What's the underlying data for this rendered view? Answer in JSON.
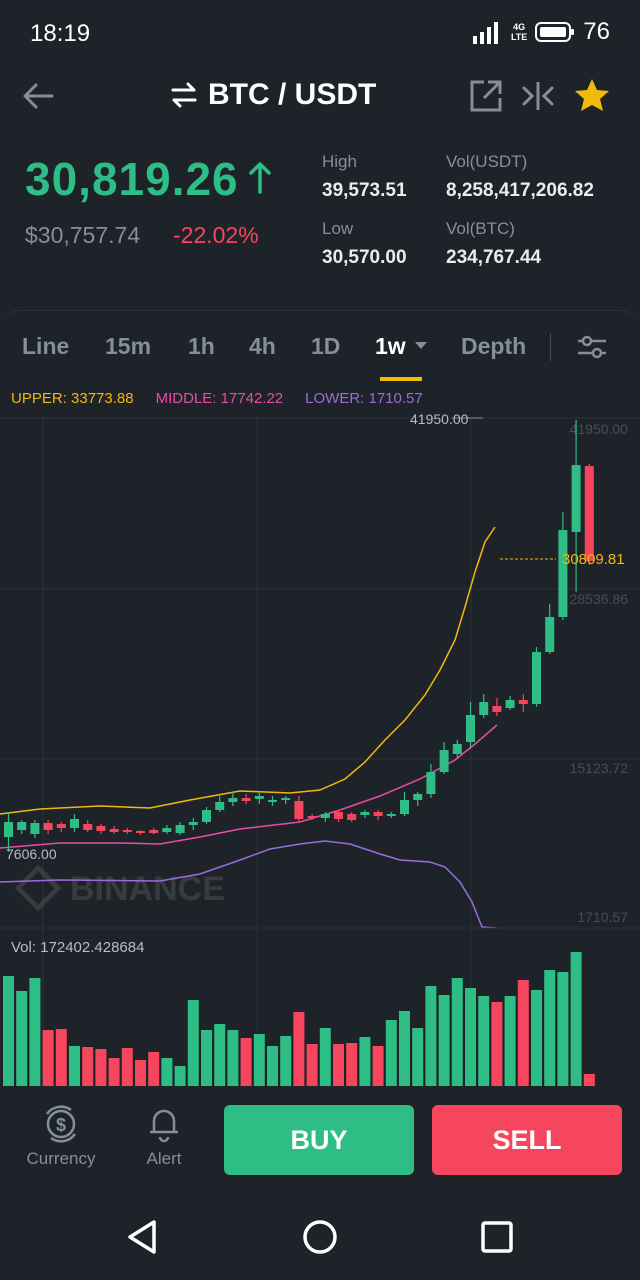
{
  "status": {
    "time": "18:19",
    "network": "4G",
    "network_sub": "LTE",
    "battery": "76"
  },
  "header": {
    "pair": "BTC / USDT"
  },
  "ticker": {
    "last_price": "30,819.26",
    "usd_price": "$30,757.74",
    "change_pct": "-22.02%",
    "high_label": "High",
    "high_value": "39,573.51",
    "low_label": "Low",
    "low_value": "30,570.00",
    "vol_usdt_label": "Vol(USDT)",
    "vol_usdt_value": "8,258,417,206.82",
    "vol_btc_label": "Vol(BTC)",
    "vol_btc_value": "234,767.44"
  },
  "tabs": {
    "items": [
      {
        "label": "Line"
      },
      {
        "label": "15m"
      },
      {
        "label": "1h"
      },
      {
        "label": "4h"
      },
      {
        "label": "1D"
      },
      {
        "label": "1w"
      },
      {
        "label": "Depth"
      }
    ],
    "active": "1w"
  },
  "indicator": {
    "upper": "UPPER: 33773.88",
    "middle": "MIDDLE: 17742.22",
    "lower": "LOWER: 1710.57"
  },
  "chart_data": {
    "type": "candlestick",
    "y_axis_labels": [
      "41950.00",
      "28536.86",
      "15123.72",
      "1710.57"
    ],
    "max_label": "41950.00",
    "min_label": "7606.00",
    "current_price_label": "30809.81",
    "watermark": "BINANCE",
    "volume_label": "Vol: 172402.428684",
    "colors": {
      "up": "#2ebd85",
      "down": "#f6465d",
      "upper": "#f0b90b",
      "middle": "#e84ca8",
      "lower": "#9c6bdc"
    }
  },
  "bottom": {
    "currency_label": "Currency",
    "alert_label": "Alert",
    "buy_label": "BUY",
    "sell_label": "SELL"
  },
  "colors": {
    "accent": "#f0b90b",
    "up": "#2ebd85",
    "down": "#f6465d",
    "bg": "#1e2329"
  }
}
